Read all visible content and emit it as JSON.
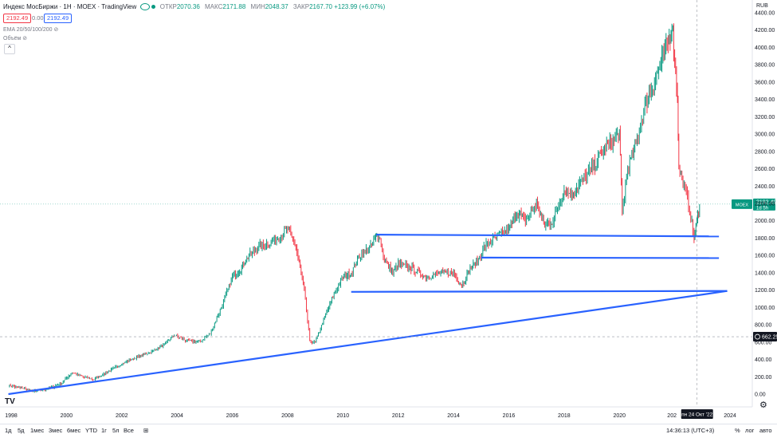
{
  "header": {
    "title": "Индекс МосБиржи · 1Н · MOEX · TradingView",
    "ohlc": [
      {
        "label": "ОТКР",
        "value": "2070.36"
      },
      {
        "label": "МАКС",
        "value": "2171.88"
      },
      {
        "label": "МИН",
        "value": "2048.37"
      },
      {
        "label": "ЗАКР",
        "value": "2167.70"
      }
    ],
    "change": "+123.99 (+6.07%)",
    "sell_price": "2192.49",
    "spread": "0.00",
    "buy_price": "2192.49",
    "indicator_ema": "EMA 20/50/100/200",
    "indicator_volume": "Объём",
    "collapse_glyph": "^",
    "currency": "RUB",
    "logo_text": "TV"
  },
  "chart_data": {
    "type": "line",
    "title": "Индекс МосБиржи · 1Н · MOEX",
    "xlabel": "",
    "ylabel": "RUB",
    "xlim": [
      1998.0,
      2024.6
    ],
    "ylim": [
      -100,
      4400
    ],
    "x_ticks": [
      "1998",
      "2000",
      "2002",
      "2004",
      "2006",
      "2008",
      "2010",
      "2012",
      "2014",
      "2016",
      "2018",
      "2020",
      "202",
      "2024"
    ],
    "y_ticks": [
      "0.00",
      "200.00",
      "400.00",
      "600.00",
      "800.00",
      "1000.00",
      "1200.00",
      "1400.00",
      "1600.00",
      "1800.00",
      "2000.00",
      "2200.00",
      "2400.00",
      "2600.00",
      "2800.00",
      "3000.00",
      "3200.00",
      "3400.00",
      "3600.00",
      "3800.00",
      "4000.00",
      "4200.00",
      "4400.00"
    ],
    "series": [
      {
        "name": "MOEX",
        "x": [
          1997.9,
          1998.4,
          1998.8,
          1999.3,
          1999.8,
          2000.2,
          2000.6,
          2001.0,
          2001.5,
          2002.0,
          2002.5,
          2003.0,
          2003.5,
          2003.9,
          2004.3,
          2004.8,
          2005.2,
          2005.6,
          2006.0,
          2006.3,
          2006.6,
          2007.0,
          2007.4,
          2007.8,
          2008.0,
          2008.3,
          2008.6,
          2008.8,
          2009.0,
          2009.3,
          2009.6,
          2010.0,
          2010.3,
          2010.6,
          2011.0,
          2011.3,
          2011.5,
          2011.8,
          2012.0,
          2012.5,
          2013.0,
          2013.5,
          2014.0,
          2014.3,
          2014.6,
          2014.9,
          2015.1,
          2015.5,
          2016.0,
          2016.3,
          2016.6,
          2017.0,
          2017.3,
          2017.6,
          2018.0,
          2018.3,
          2018.6,
          2019.0,
          2019.5,
          2020.0,
          2020.1,
          2020.3,
          2020.6,
          2021.0,
          2021.5,
          2021.8,
          2021.9,
          2022.0,
          2022.1,
          2022.15,
          2022.3,
          2022.5,
          2022.7,
          2022.8,
          2022.9
        ],
        "values": [
          100,
          70,
          30,
          60,
          120,
          250,
          200,
          170,
          260,
          350,
          420,
          480,
          560,
          680,
          620,
          600,
          700,
          1000,
          1350,
          1450,
          1600,
          1700,
          1750,
          1850,
          1900,
          1700,
          1200,
          600,
          600,
          850,
          1100,
          1350,
          1400,
          1600,
          1700,
          1850,
          1550,
          1400,
          1500,
          1450,
          1350,
          1400,
          1400,
          1250,
          1450,
          1550,
          1700,
          1800,
          1900,
          2100,
          2000,
          2200,
          1950,
          2000,
          2350,
          2300,
          2450,
          2600,
          2850,
          3000,
          2100,
          2600,
          2900,
          3400,
          3800,
          4100,
          4290,
          3900,
          3400,
          2600,
          2450,
          2200,
          1800,
          2000,
          2170
        ]
      }
    ],
    "trend_lines": [
      {
        "x": [
          1997.9,
          2023.9
        ],
        "values": [
          0,
          1190
        ]
      },
      {
        "x": [
          2011.2,
          2023.6
        ],
        "values": [
          1840,
          1820
        ]
      },
      {
        "x": [
          2015.0,
          2023.6
        ],
        "values": [
          1575,
          1570
        ]
      },
      {
        "x": [
          2010.3,
          2023.9
        ],
        "values": [
          1180,
          1190
        ]
      }
    ],
    "last_price": {
      "label": "MOEX",
      "value": "2192.49",
      "countdown": "1d 5h",
      "level": 2192.49
    },
    "cursor": {
      "price": "662.25",
      "level": 662.25,
      "date": "пн 24 Окт '22",
      "date_x": 2022.81
    }
  },
  "bottom": {
    "periods": [
      "1д",
      "5д",
      "1мес",
      "3мес",
      "6мес",
      "YTD",
      "1г",
      "5л",
      "Все"
    ],
    "time": "14:36:13 (UTC+3)",
    "percent": "%",
    "log": "лог",
    "auto": "авто"
  },
  "colors": {
    "up": "#089981",
    "down": "#f23645",
    "trend": "#2962ff",
    "axis": "#131722"
  }
}
